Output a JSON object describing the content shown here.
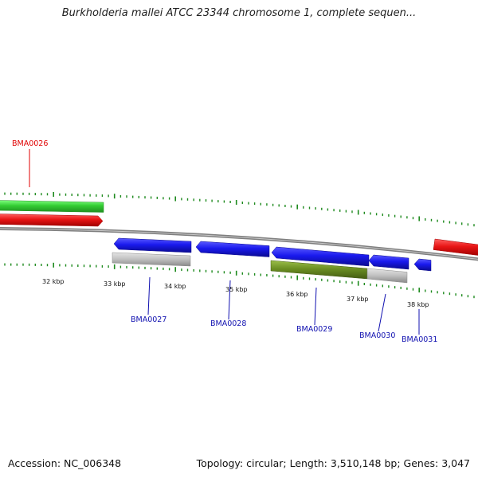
{
  "title": "Burkholderia mallei ATCC 23344 chromosome 1, complete sequen...",
  "footer": {
    "accession": "Accession: NC_006348",
    "summary": "Topology: circular; Length: 3,510,148 bp; Genes: 3,047"
  },
  "scale_labels": [
    "32 kbp",
    "33 kbp",
    "34 kbp",
    "35 kbp",
    "36 kbp",
    "37 kbp",
    "38 kbp"
  ],
  "genes": [
    {
      "id": "BMA0026",
      "color": "#e00000"
    },
    {
      "id": "BMA0027",
      "color": "#1010b0"
    },
    {
      "id": "BMA0028",
      "color": "#1010b0"
    },
    {
      "id": "BMA0029",
      "color": "#1010b0"
    },
    {
      "id": "BMA0030",
      "color": "#1010b0"
    },
    {
      "id": "BMA0031",
      "color": "#1010b0"
    }
  ],
  "colors": {
    "cds": "#1a1aee",
    "gene": "#e81515",
    "green_feature": "#33cc33",
    "olive_feature": "#6b8e23",
    "gray_feature": "#bfbfbf",
    "backbone": "#808080",
    "tick": "#1e8a1e"
  }
}
